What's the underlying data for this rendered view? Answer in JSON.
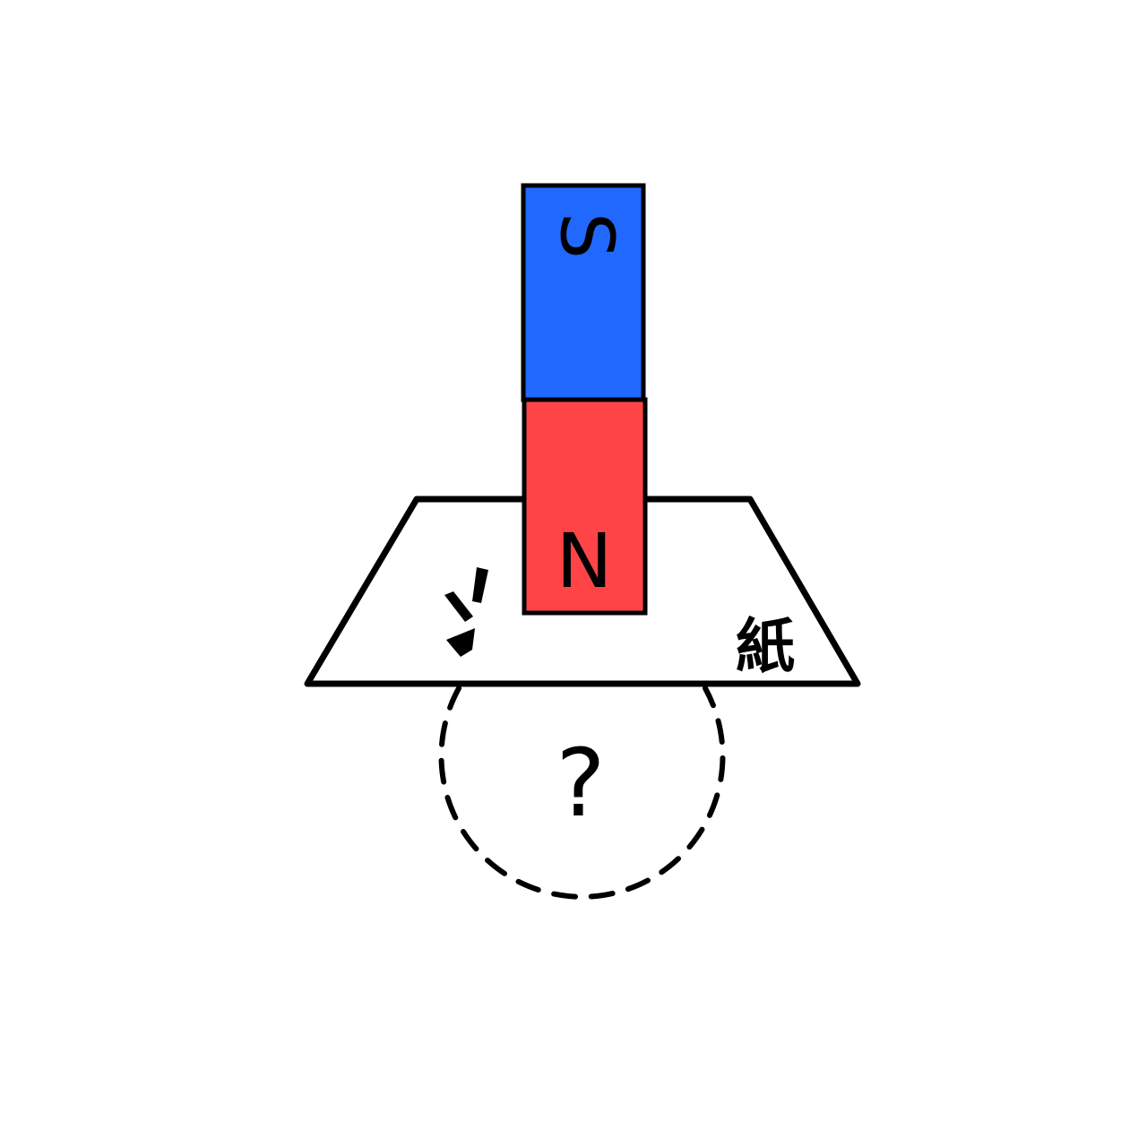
{
  "magnet": {
    "top_pole_label": "S",
    "bottom_pole_label": "N",
    "top_pole_color": "#2168FF",
    "bottom_pole_color": "#FF4447"
  },
  "paper": {
    "label": "紙"
  },
  "hidden_region": {
    "label": "?"
  },
  "colors": {
    "outline": "#000000",
    "background": "#FFFFFF"
  },
  "icons": [
    "emphasis-lines-icon"
  ]
}
